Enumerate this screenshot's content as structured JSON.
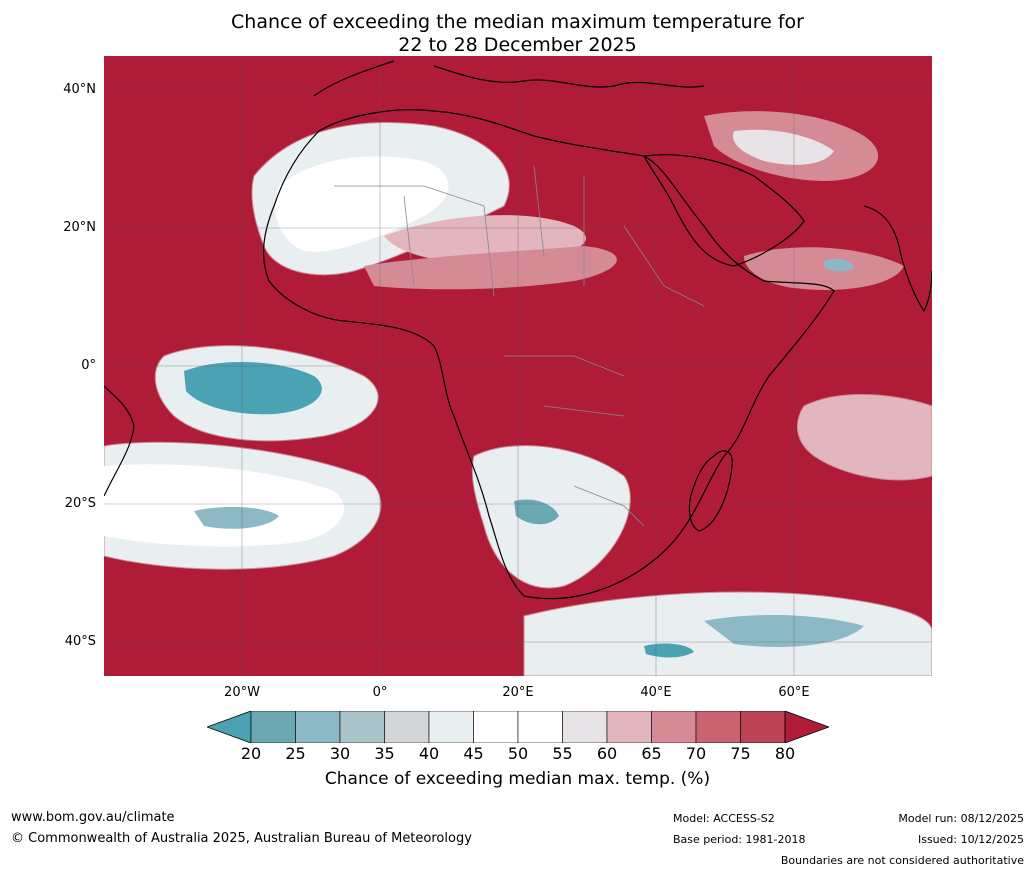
{
  "title": {
    "line1": "Chance of exceeding the median maximum temperature for",
    "line2": "22 to 28 December 2025"
  },
  "map": {
    "lat_labels": [
      "40°N",
      "20°N",
      "0°",
      "20°S",
      "40°S"
    ],
    "lon_labels": [
      "20°W",
      "0°",
      "20°E",
      "40°E",
      "60°E"
    ],
    "background_color": "#b01c38"
  },
  "colorbar": {
    "ticks": [
      "20",
      "25",
      "30",
      "35",
      "40",
      "45",
      "50",
      "55",
      "60",
      "65",
      "70",
      "75",
      "80"
    ],
    "colors": [
      "#4aa2b2",
      "#6ca8b4",
      "#8db9c6",
      "#a9c3c8",
      "#d3d6d9",
      "#e9eef1",
      "#ffffff",
      "#ffffff",
      "#e7e3e6",
      "#e3b5bd",
      "#d58b96",
      "#c9636f",
      "#bb4353",
      "#b01c38"
    ],
    "label": "Chance of exceeding median max. temp. (%)"
  },
  "footer": {
    "website": "www.bom.gov.au/climate",
    "copyright": "© Commonwealth of Australia 2025, Australian Bureau of Meteorology",
    "model": "Model: ACCESS-S2",
    "base_period": "Base period: 1981-2018",
    "model_run": "Model run: 08/12/2025",
    "issued": "Issued: 10/12/2025",
    "disclaimer": "Boundaries are not considered authoritative"
  }
}
